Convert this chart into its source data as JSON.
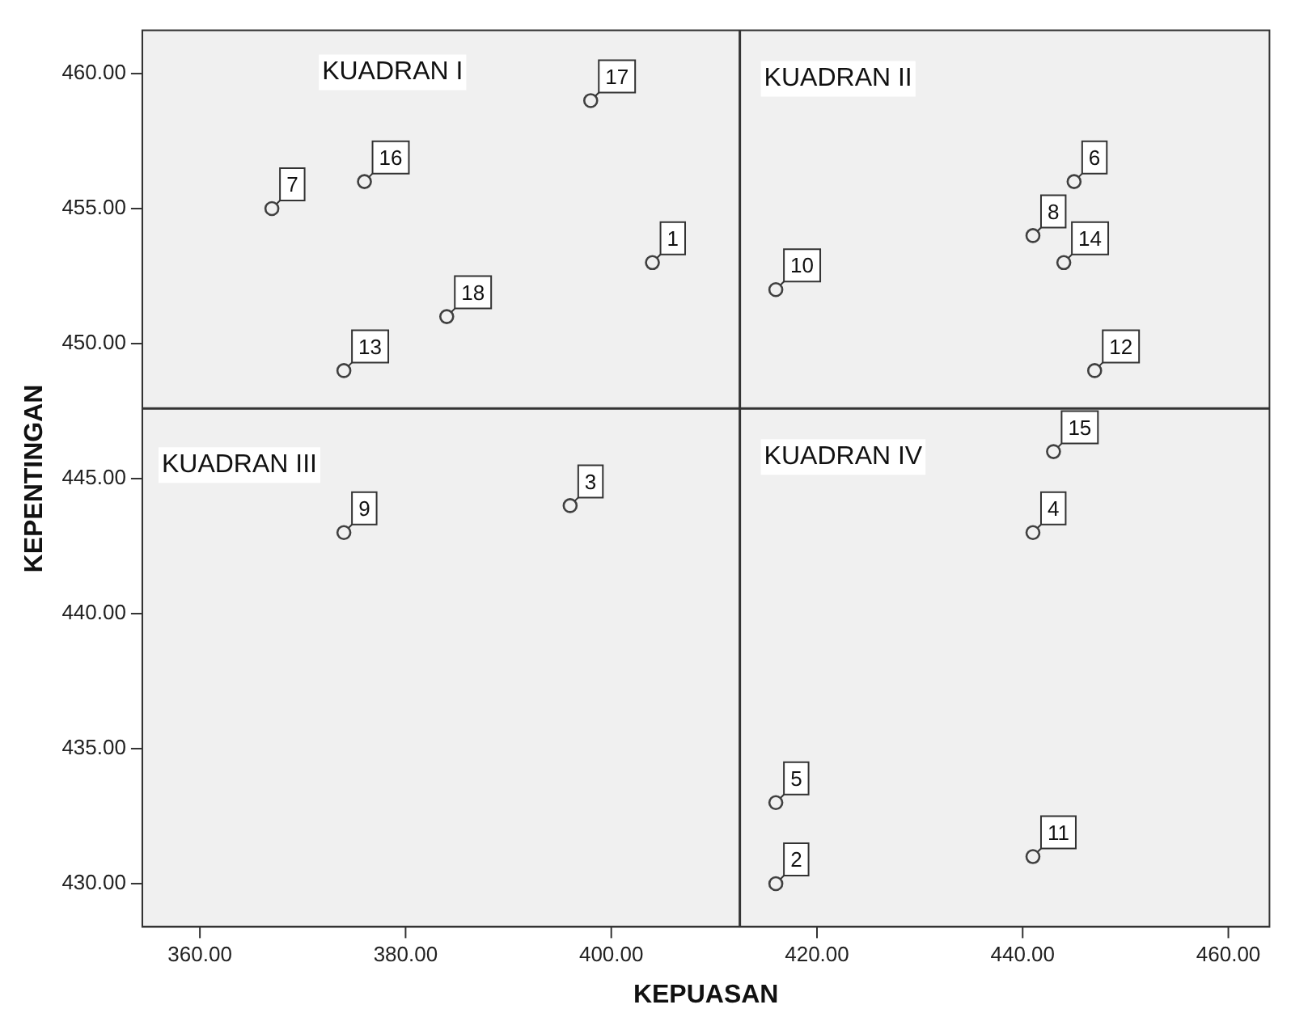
{
  "chart_data": {
    "type": "scatter",
    "xlabel": "KEPUASAN",
    "ylabel": "KEPENTINGAN",
    "series": [
      {
        "color": "#404040",
        "x": [
          404,
          416,
          396,
          441,
          416,
          445,
          367,
          441,
          374,
          416,
          441,
          447,
          374,
          444,
          443,
          376,
          398,
          384
        ],
        "values": [
          453,
          430,
          444,
          443,
          433,
          456,
          455,
          454,
          443,
          452,
          431,
          449,
          449,
          453,
          446,
          456,
          459,
          451
        ]
      }
    ],
    "xlim": [
      354.4,
      464
    ],
    "ylim": [
      428.4,
      461.6
    ],
    "xticks": [
      {
        "value": 360,
        "label": "360.00"
      },
      {
        "value": 380,
        "label": "380.00"
      },
      {
        "value": 400,
        "label": "400.00"
      },
      {
        "value": 420,
        "label": "420.00"
      },
      {
        "value": 440,
        "label": "440.00"
      },
      {
        "value": 460,
        "label": "460.00"
      }
    ],
    "yticks": [
      {
        "value": 430,
        "label": "430.00"
      },
      {
        "value": 435,
        "label": "435.00"
      },
      {
        "value": 440,
        "label": "440.00"
      },
      {
        "value": 445,
        "label": "445.00"
      },
      {
        "value": 450,
        "label": "450.00"
      },
      {
        "value": 455,
        "label": "455.00"
      },
      {
        "value": 460,
        "label": "460.00"
      }
    ],
    "ref_lines": [
      {
        "axis": "x",
        "value": 412.5,
        "color": "#333333"
      },
      {
        "axis": "y",
        "value": 447.6,
        "color": "#333333"
      }
    ],
    "marker": "circle",
    "grid": false,
    "legend": false,
    "annotations": [
      "KUADRAN I",
      "KUADRAN II",
      "KUADRAN III",
      "KUADRAN IV",
      {
        "text": "1",
        "x": 404,
        "y": 453
      },
      {
        "text": "2",
        "x": 416,
        "y": 430
      },
      {
        "text": "3",
        "x": 396,
        "y": 444
      },
      {
        "text": "4",
        "x": 441,
        "y": 443
      },
      {
        "text": "5",
        "x": 416,
        "y": 433
      },
      {
        "text": "6",
        "x": 445,
        "y": 456
      },
      {
        "text": "7",
        "x": 367,
        "y": 455
      },
      {
        "text": "8",
        "x": 441,
        "y": 454
      },
      {
        "text": "9",
        "x": 374,
        "y": 443
      },
      {
        "text": "10",
        "x": 416,
        "y": 452
      },
      {
        "text": "11",
        "x": 441,
        "y": 431
      },
      {
        "text": "12",
        "x": 447,
        "y": 449
      },
      {
        "text": "13",
        "x": 374,
        "y": 449
      },
      {
        "text": "14",
        "x": 444,
        "y": 453
      },
      {
        "text": "15",
        "x": 443,
        "y": 446
      },
      {
        "text": "16",
        "x": 376,
        "y": 456
      },
      {
        "text": "17",
        "x": 398,
        "y": 459
      },
      {
        "text": "18",
        "x": 384,
        "y": 451
      }
    ]
  }
}
